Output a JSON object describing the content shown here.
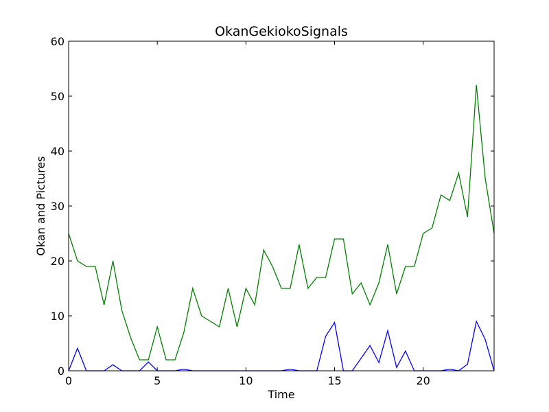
{
  "chart_data": {
    "type": "line",
    "title": "OkanGekiokoSignals",
    "xlabel": "Time",
    "ylabel": "Okan and Pictures",
    "xlim": [
      0,
      24
    ],
    "ylim": [
      0,
      60
    ],
    "x_ticks": [
      0,
      5,
      10,
      15,
      20
    ],
    "y_ticks": [
      0,
      10,
      20,
      30,
      40,
      50,
      60
    ],
    "x_tick_labels": [
      "0",
      "5",
      "10",
      "15",
      "20"
    ],
    "y_tick_labels": [
      "0",
      "10",
      "20",
      "30",
      "40",
      "50",
      "60"
    ],
    "grid": false,
    "x": [
      0,
      0.5,
      1,
      1.5,
      2,
      2.5,
      3,
      3.5,
      4,
      4.5,
      5,
      5.5,
      6,
      6.5,
      7,
      7.5,
      8,
      8.5,
      9,
      9.5,
      10,
      10.5,
      11,
      11.5,
      12,
      12.5,
      13,
      13.5,
      14,
      14.5,
      15,
      15.5,
      16,
      16.5,
      17,
      17.5,
      18,
      18.5,
      19,
      19.5,
      20,
      20.5,
      21,
      21.5,
      22,
      22.5,
      23,
      23.5,
      24
    ],
    "series": [
      {
        "color": "#0000ff",
        "values": [
          0,
          4.1,
          0,
          0,
          0,
          1.1,
          0,
          0,
          0,
          1.6,
          0,
          0,
          0,
          0.3,
          0,
          0,
          0,
          0,
          0,
          0,
          0,
          0,
          0,
          0,
          0,
          0.3,
          0,
          0,
          0,
          6.3,
          8.8,
          0,
          0,
          2.3,
          4.6,
          1.5,
          7.3,
          0.6,
          3.6,
          0,
          0,
          0,
          0,
          0.3,
          0,
          1.2,
          9.0,
          5.7,
          0
        ]
      },
      {
        "color": "#008000",
        "values": [
          25,
          20,
          19,
          19,
          12,
          20,
          11,
          6,
          2,
          2,
          8,
          2,
          2,
          7,
          15,
          10,
          9,
          8,
          15,
          8,
          15,
          12,
          22,
          19,
          15,
          15,
          23,
          15,
          17,
          17,
          24,
          24,
          14,
          16,
          12,
          16,
          23,
          14,
          19,
          19,
          25,
          26,
          32,
          31,
          36,
          28,
          52,
          35,
          25
        ]
      }
    ]
  }
}
